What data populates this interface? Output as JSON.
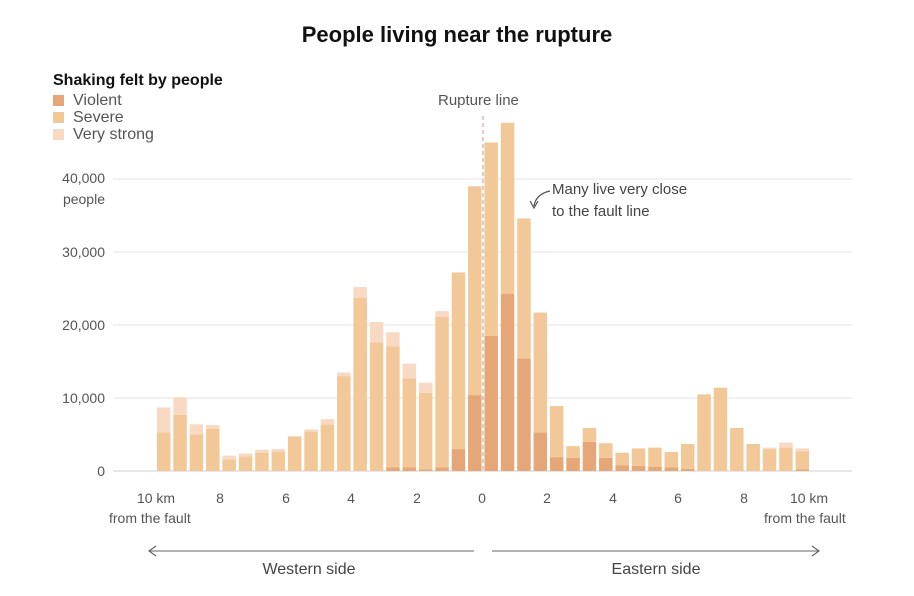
{
  "title": "People living near the rupture",
  "legend": {
    "title": "Shaking felt by people",
    "items": [
      {
        "label": "Violent",
        "color": "#e5a777"
      },
      {
        "label": "Severe",
        "color": "#f3c898"
      },
      {
        "label": "Very strong",
        "color": "#f8d9c4"
      }
    ]
  },
  "annotations": {
    "rupture_line": "Rupture line",
    "callout_line1": "Many live very close",
    "callout_line2": "to the fault line"
  },
  "axis": {
    "y_ticks": [
      "0",
      "10,000",
      "20,000",
      "30,000",
      "40,000"
    ],
    "y_unit": "people",
    "x_ticks_west": [
      "10 km",
      "8",
      "6",
      "4",
      "2"
    ],
    "x_tick_center": "0",
    "x_ticks_east": [
      "2",
      "4",
      "6",
      "8",
      "10 km"
    ],
    "x_unit_left": "from the fault",
    "x_unit_right": "from the fault"
  },
  "sides": {
    "west": "Western side",
    "east": "Eastern side"
  },
  "chart_data": {
    "type": "bar",
    "stacked": true,
    "xlabel": "km from the fault",
    "ylabel": "people",
    "ylim": [
      0,
      45000
    ],
    "xlim": [
      -10.5,
      11
    ],
    "series_names": [
      "Violent",
      "Severe",
      "Very strong"
    ],
    "bins": [
      {
        "x": -9.75,
        "violent": 0,
        "severe": 5300,
        "very_strong": 3400
      },
      {
        "x": -9.25,
        "violent": 0,
        "severe": 7700,
        "very_strong": 2400
      },
      {
        "x": -8.75,
        "violent": 0,
        "severe": 5000,
        "very_strong": 1400
      },
      {
        "x": -8.25,
        "violent": 0,
        "severe": 5800,
        "very_strong": 500
      },
      {
        "x": -7.75,
        "violent": 0,
        "severe": 1600,
        "very_strong": 500
      },
      {
        "x": -7.25,
        "violent": 0,
        "severe": 2000,
        "very_strong": 400
      },
      {
        "x": -6.75,
        "violent": 0,
        "severe": 2500,
        "very_strong": 400
      },
      {
        "x": -6.25,
        "violent": 0,
        "severe": 2700,
        "very_strong": 300
      },
      {
        "x": -5.75,
        "violent": 0,
        "severe": 4700,
        "very_strong": 100
      },
      {
        "x": -5.25,
        "violent": 0,
        "severe": 5400,
        "very_strong": 300
      },
      {
        "x": -4.75,
        "violent": 0,
        "severe": 6400,
        "very_strong": 700
      },
      {
        "x": -4.25,
        "violent": 0,
        "severe": 13000,
        "very_strong": 500
      },
      {
        "x": -3.75,
        "violent": 0,
        "severe": 23700,
        "very_strong": 1500
      },
      {
        "x": -3.25,
        "violent": 0,
        "severe": 17600,
        "very_strong": 2800
      },
      {
        "x": -2.75,
        "violent": 500,
        "severe": 16600,
        "very_strong": 1900
      },
      {
        "x": -2.25,
        "violent": 500,
        "severe": 12200,
        "very_strong": 2000
      },
      {
        "x": -1.75,
        "violent": 200,
        "severe": 10500,
        "very_strong": 1400
      },
      {
        "x": -1.25,
        "violent": 500,
        "severe": 20600,
        "very_strong": 800
      },
      {
        "x": -0.75,
        "violent": 3000,
        "severe": 24200,
        "very_strong": 0
      },
      {
        "x": -0.25,
        "violent": 10400,
        "severe": 28600,
        "very_strong": 0
      },
      {
        "x": 0.25,
        "violent": 18500,
        "severe": 26500,
        "very_strong": 0
      },
      {
        "x": 0.75,
        "violent": 24300,
        "severe": 23400,
        "very_strong": 0
      },
      {
        "x": 1.25,
        "violent": 15400,
        "severe": 19200,
        "very_strong": 0
      },
      {
        "x": 1.75,
        "violent": 5300,
        "severe": 16400,
        "very_strong": 0
      },
      {
        "x": 2.25,
        "violent": 1900,
        "severe": 7000,
        "very_strong": 0
      },
      {
        "x": 2.75,
        "violent": 1800,
        "severe": 1600,
        "very_strong": 0
      },
      {
        "x": 3.25,
        "violent": 4000,
        "severe": 1900,
        "very_strong": 0
      },
      {
        "x": 3.75,
        "violent": 1800,
        "severe": 2000,
        "very_strong": 0
      },
      {
        "x": 4.25,
        "violent": 800,
        "severe": 1700,
        "very_strong": 0
      },
      {
        "x": 4.75,
        "violent": 700,
        "severe": 2400,
        "very_strong": 0
      },
      {
        "x": 5.25,
        "violent": 600,
        "severe": 2600,
        "very_strong": 0
      },
      {
        "x": 5.75,
        "violent": 500,
        "severe": 2100,
        "very_strong": 0
      },
      {
        "x": 6.25,
        "violent": 300,
        "severe": 3400,
        "very_strong": 0
      },
      {
        "x": 6.75,
        "violent": 0,
        "severe": 10500,
        "very_strong": 0
      },
      {
        "x": 7.25,
        "violent": 0,
        "severe": 11400,
        "very_strong": 0
      },
      {
        "x": 7.75,
        "violent": 0,
        "severe": 5900,
        "very_strong": 0
      },
      {
        "x": 8.25,
        "violent": 0,
        "severe": 3700,
        "very_strong": 0
      },
      {
        "x": 8.75,
        "violent": 0,
        "severe": 3000,
        "very_strong": 200
      },
      {
        "x": 9.25,
        "violent": 0,
        "severe": 3200,
        "very_strong": 700
      },
      {
        "x": 9.75,
        "violent": 200,
        "severe": 2500,
        "very_strong": 400
      }
    ],
    "grid": true,
    "legend_position": "top-left"
  }
}
